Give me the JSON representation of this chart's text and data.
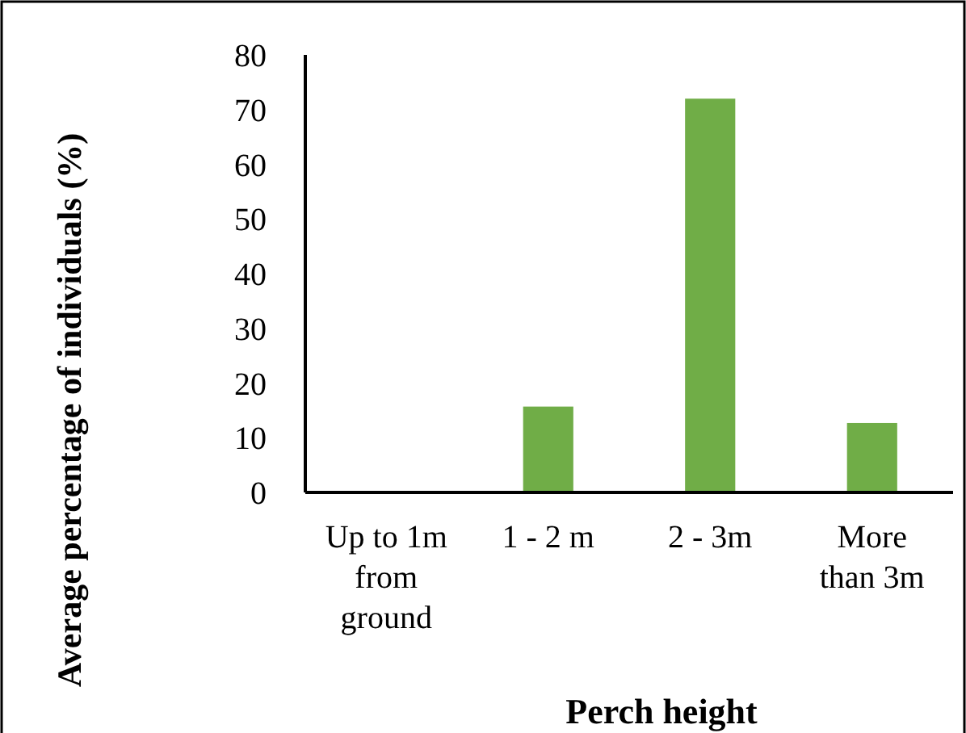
{
  "chart_data": {
    "type": "bar",
    "xlabel": "Perch height",
    "ylabel": "Average percentage of individuals (%)",
    "categories": [
      "Up to 1m from ground",
      "1 - 2 m",
      "2 - 3m",
      "More than 3m"
    ],
    "values": [
      0,
      15.7,
      72,
      12.7
    ],
    "color": "#70ad47",
    "ylim": [
      0,
      80
    ],
    "yticks": [
      0,
      10,
      20,
      30,
      40,
      50,
      60,
      70,
      80
    ],
    "grid": false
  }
}
